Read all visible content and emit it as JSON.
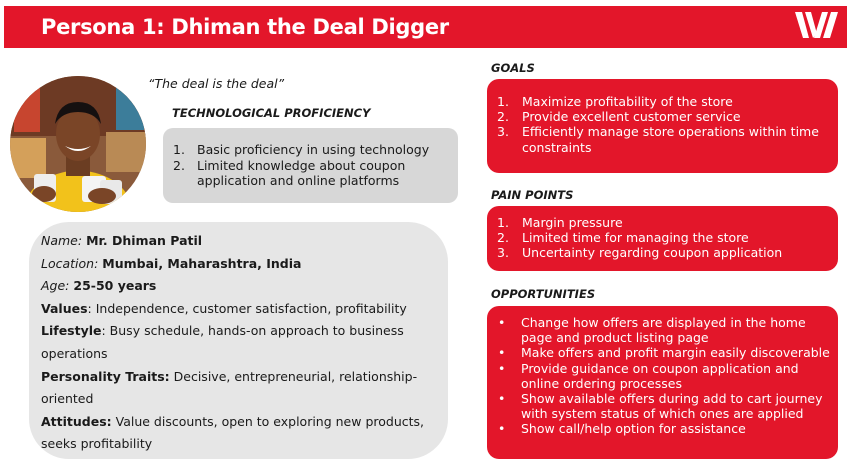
{
  "header": {
    "title": "Persona 1: Dhiman the Deal Digger",
    "brand_color": "#e3162a"
  },
  "quote": "“The deal is the deal”",
  "tech_proficiency": {
    "heading": "TECHNOLOGICAL PROFICIENCY",
    "items": [
      {
        "num": "1.",
        "text": "Basic proficiency in using technology"
      },
      {
        "num": "2.",
        "text": "Limited knowledge about coupon application and online platforms"
      }
    ]
  },
  "profile": {
    "name_label": "Name:",
    "name": "Mr. Dhiman Patil",
    "location_label": "Location:",
    "location": "Mumbai, Maharashtra, India",
    "age_label": "Age:",
    "age": "25-50 years",
    "values_label": "Values",
    "values": ": Independence, customer satisfaction, profitability",
    "lifestyle_label": "Lifestyle",
    "lifestyle": ": Busy schedule, hands-on approach to business operations",
    "personality_label": "Personality Traits:",
    "personality": " Decisive, entrepreneurial, relationship-oriented",
    "attitudes_label": "Attitudes:",
    "attitudes": " Value discounts, open to exploring new products, seeks profitability"
  },
  "goals": {
    "heading": "GOALS",
    "items": [
      {
        "num": "1.",
        "text": "Maximize profitability of the store"
      },
      {
        "num": "2.",
        "text": "Provide excellent customer service"
      },
      {
        "num": "3.",
        "text": "Efficiently manage store operations within time constraints"
      }
    ]
  },
  "pain_points": {
    "heading": "PAIN POINTS",
    "items": [
      {
        "num": "1.",
        "text": "Margin pressure"
      },
      {
        "num": "2.",
        "text": "Limited time for managing the store"
      },
      {
        "num": "3.",
        "text": "Uncertainty regarding coupon application"
      }
    ]
  },
  "opportunities": {
    "heading": "OPPORTUNITIES",
    "bullet": "•",
    "items": [
      "Change how offers are displayed in the home page and product listing page",
      "Make offers and profit margin easily discoverable",
      "Provide guidance on coupon application and online ordering processes",
      "Show available offers during add to cart journey with system status of which ones are applied",
      "Show call/help option for assistance"
    ]
  }
}
